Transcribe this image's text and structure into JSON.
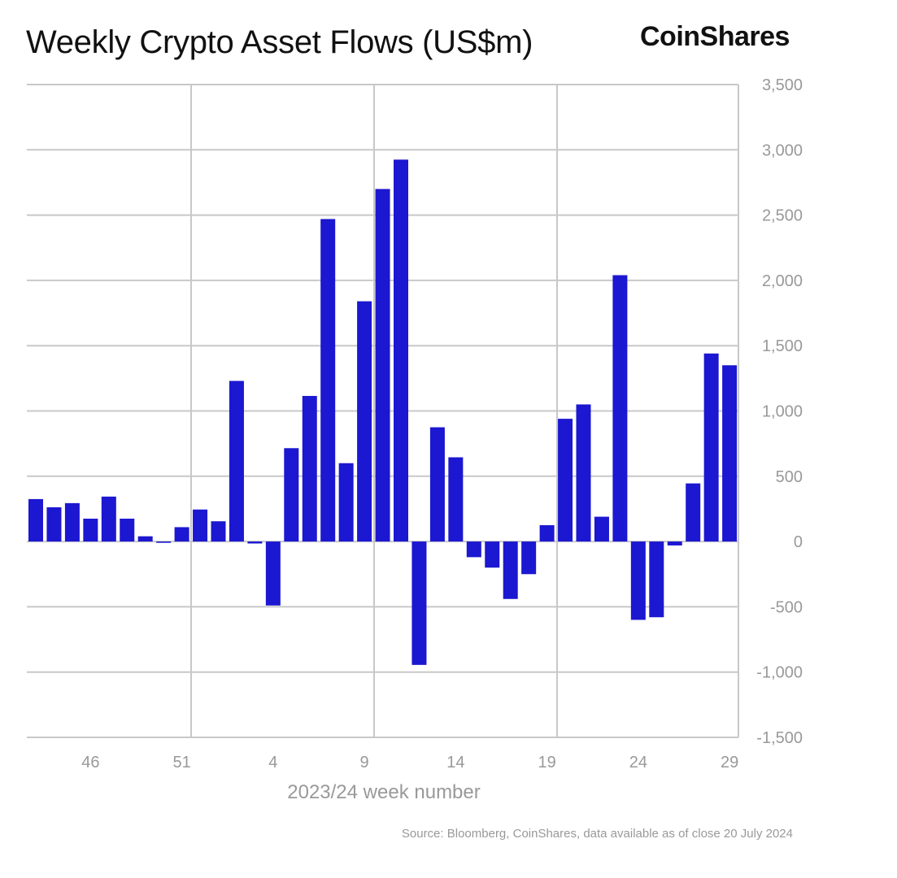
{
  "header": {
    "title": "Weekly Crypto Asset Flows (US$m)",
    "logo_text": "CoinShares"
  },
  "footer": {
    "source": "Source: Bloomberg, CoinShares, data available as of close 20 July 2024"
  },
  "chart_data": {
    "type": "bar",
    "title": "Weekly Crypto Asset Flows (US$m)",
    "xlabel": "2023/24 week number",
    "ylabel": "",
    "ylim": [
      -1500,
      3500
    ],
    "yticks": [
      -1500,
      -1000,
      -500,
      0,
      500,
      1000,
      1500,
      2000,
      2500,
      3000,
      3500
    ],
    "ytick_labels": [
      "-1,500",
      "-1,000",
      "-500",
      "0",
      "500",
      "1,000",
      "1,500",
      "2,000",
      "2,500",
      "3,000",
      "3,500"
    ],
    "xtick_labels": [
      "46",
      "51",
      "4",
      "9",
      "14",
      "19",
      "24",
      "29"
    ],
    "grid": true,
    "bar_color": "#1c17d0",
    "categories": [
      "43",
      "44",
      "45",
      "46",
      "47",
      "48",
      "49",
      "50",
      "51",
      "52",
      "1",
      "2",
      "3",
      "4",
      "5",
      "6",
      "7",
      "8",
      "9",
      "10",
      "11",
      "12",
      "13",
      "14",
      "15",
      "16",
      "17",
      "18",
      "19",
      "20",
      "21",
      "22",
      "23",
      "24",
      "25",
      "26",
      "27",
      "28",
      "29"
    ],
    "values": [
      325,
      262,
      294,
      175,
      344,
      175,
      40,
      -10,
      110,
      245,
      155,
      1230,
      -15,
      -490,
      715,
      1115,
      2470,
      600,
      1840,
      2700,
      2925,
      -945,
      875,
      645,
      -120,
      -200,
      -440,
      -250,
      125,
      940,
      1050,
      190,
      2040,
      -600,
      -580,
      -30,
      445,
      1440,
      1350
    ]
  }
}
